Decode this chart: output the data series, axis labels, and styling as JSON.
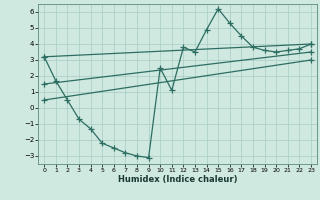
{
  "xlabel": "Humidex (Indice chaleur)",
  "background_color": "#cfe8e0",
  "grid_color": "#a8ccc4",
  "line_color": "#2d6e62",
  "xlim": [
    -0.5,
    23.5
  ],
  "ylim": [
    -3.5,
    6.5
  ],
  "yticks": [
    -3,
    -2,
    -1,
    0,
    1,
    2,
    3,
    4,
    5,
    6
  ],
  "xticks": [
    0,
    1,
    2,
    3,
    4,
    5,
    6,
    7,
    8,
    9,
    10,
    11,
    12,
    13,
    14,
    15,
    16,
    17,
    18,
    19,
    20,
    21,
    22,
    23
  ],
  "series_main": {
    "x": [
      0,
      1,
      2,
      3,
      4,
      5,
      6,
      7,
      8,
      9,
      10,
      11,
      12,
      13,
      14,
      15,
      16,
      17,
      18,
      19,
      20,
      21,
      22,
      23
    ],
    "y": [
      3.2,
      1.7,
      0.5,
      -0.7,
      -1.3,
      -2.2,
      -2.5,
      -2.8,
      -3.0,
      -3.1,
      2.5,
      1.1,
      3.8,
      3.5,
      4.9,
      6.2,
      5.3,
      4.5,
      3.8,
      3.6,
      3.5,
      3.6,
      3.7,
      4.0
    ]
  },
  "series_lines": [
    {
      "x": [
        0,
        23
      ],
      "y": [
        3.2,
        4.0
      ]
    },
    {
      "x": [
        0,
        23
      ],
      "y": [
        1.5,
        3.5
      ]
    },
    {
      "x": [
        0,
        23
      ],
      "y": [
        0.5,
        3.0
      ]
    }
  ]
}
